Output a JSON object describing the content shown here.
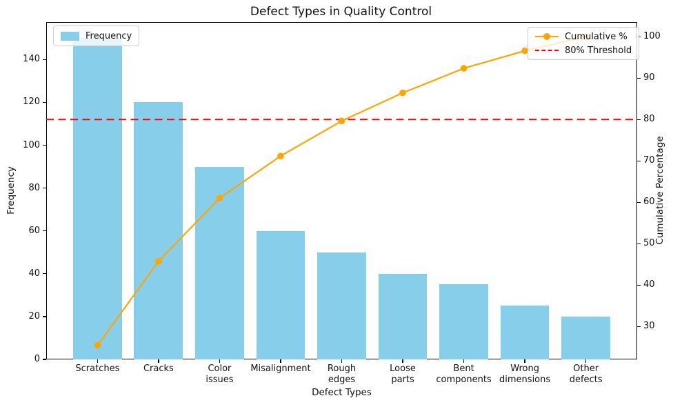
{
  "chart_data": {
    "type": "bar",
    "subtype": "pareto-combo-bar-line",
    "title": "Defect Types in Quality Control",
    "xlabel": "Defect Types",
    "ylabel_left": "Frequency",
    "ylabel_right": "Cumulative Percentage",
    "categories": [
      "Scratches",
      "Cracks",
      "Color\nissues",
      "Misalignment",
      "Rough\nedges",
      "Loose\nparts",
      "Bent\ncomponents",
      "Wrong\ndimensions",
      "Other\ndefects"
    ],
    "bar_series": {
      "name": "Frequency",
      "color": "#87CEEB",
      "values": [
        150,
        120,
        90,
        60,
        50,
        40,
        35,
        25,
        20
      ]
    },
    "line_series": {
      "name": "Cumulative %",
      "color": "#FFA500",
      "values": [
        25.42,
        45.76,
        61.02,
        71.19,
        79.66,
        86.44,
        92.37,
        96.61,
        100.0
      ]
    },
    "threshold": {
      "label": "80% Threshold",
      "value": 80,
      "color": "#FF0000",
      "style": "dashed"
    },
    "axes": {
      "xlim": [
        -0.84,
        8.84
      ],
      "ylim_left": [
        0,
        157.5
      ],
      "ylim_right": [
        22.05,
        103.55
      ],
      "yticks_left": [
        0,
        20,
        40,
        60,
        80,
        100,
        120,
        140
      ],
      "yticks_right": [
        30,
        40,
        50,
        60,
        70,
        80,
        90,
        100
      ],
      "grid": false,
      "spine_color": "#000000",
      "text_color": "#111111"
    },
    "legend_left": {
      "items": [
        {
          "label": "Frequency",
          "swatch": "bar-patch",
          "color": "#87CEEB"
        }
      ]
    },
    "legend_right": {
      "items": [
        {
          "label": "Cumulative %",
          "swatch": "line-with-marker",
          "color": "#FFA500"
        },
        {
          "label": "80% Threshold",
          "swatch": "dashed-line",
          "color": "#FF0000"
        }
      ]
    }
  }
}
